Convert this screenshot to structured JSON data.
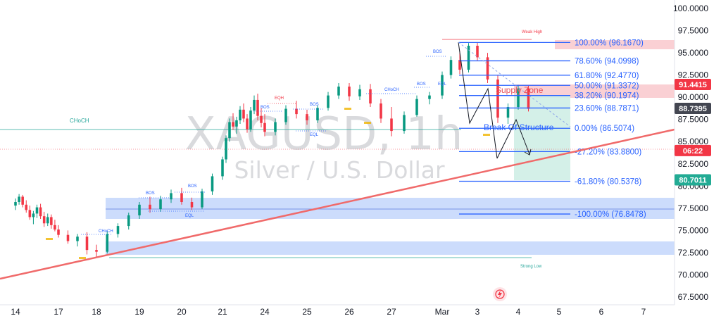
{
  "chart_data": {
    "type": "candlestick",
    "symbol": "XAGUSD",
    "interval": "1h",
    "description": "Silver / U.S. Dollar",
    "y_axis": {
      "range": [
        66.8,
        100.6
      ],
      "ticks": [
        "100.0000",
        "97.5000",
        "95.0000",
        "92.5000",
        "90.0000",
        "87.5000",
        "85.0000",
        "82.5000",
        "80.0000",
        "77.5000",
        "75.0000",
        "72.5000",
        "70.0000",
        "67.5000"
      ],
      "tick_values": [
        100,
        97.5,
        95,
        92.5,
        90,
        87.5,
        85,
        82.5,
        80,
        77.5,
        75,
        72.5,
        70,
        67.5
      ]
    },
    "x_axis": {
      "ticks": [
        "14",
        "17",
        "18",
        "19",
        "20",
        "21",
        "24",
        "25",
        "26",
        "27",
        "Mar",
        "3",
        "4",
        "5",
        "6",
        "7"
      ],
      "positions": [
        0,
        3,
        4,
        5,
        6,
        7,
        10,
        11,
        12,
        13,
        14,
        15,
        16,
        17,
        18,
        19
      ]
    },
    "price_tags": [
      {
        "value": 91.4415,
        "text": "91.4415",
        "color": "#f23645"
      },
      {
        "value": 88.7395,
        "text": "88.7395",
        "color": "#434651"
      },
      {
        "value": 84.0,
        "text": "06:22",
        "color": "#f23645"
      },
      {
        "value": 80.7011,
        "text": "80.7011",
        "color": "#22ab94"
      }
    ],
    "fib_levels": [
      {
        "value": 96.167,
        "label": "100.00% (96.1670)"
      },
      {
        "value": 94.0998,
        "label": "78.60% (94.0998)"
      },
      {
        "value": 92.477,
        "label": "61.80% (92.4770)"
      },
      {
        "value": 91.3372,
        "label": "50.00% (91.3372)"
      },
      {
        "value": 90.1974,
        "label": "38.20% (90.1974)"
      },
      {
        "value": 88.7871,
        "label": "23.60% (88.7871)"
      },
      {
        "value": 86.5074,
        "label": "0.00% (86.5074)"
      },
      {
        "value": 83.88,
        "label": "-27.20% (83.8800)"
      },
      {
        "value": 80.5378,
        "label": "-61.80% (80.5378)"
      },
      {
        "value": 76.8478,
        "label": "-100.00% (76.8478)"
      }
    ],
    "annotations": {
      "weak_high": "Weak High",
      "strong_low": "Strong Low",
      "supply_zone": "Supply Zone",
      "break_of_structure": "Break Of Structure",
      "choch_left": "CHoCH",
      "choch_small_1": "CHoCH",
      "choch_small_2": "CHoCH",
      "bos": "BOS",
      "eqh": "EQH",
      "eql": "EQL"
    },
    "candles": [
      [
        0,
        77.8,
        78.6,
        77.3,
        78.2
      ],
      [
        0.25,
        78.2,
        79.1,
        77.9,
        78.8
      ],
      [
        0.5,
        78.8,
        79.0,
        77.6,
        77.9
      ],
      [
        0.75,
        77.9,
        78.4,
        77.0,
        77.3
      ],
      [
        1,
        77.3,
        77.8,
        76.2,
        76.5
      ],
      [
        1.25,
        76.5,
        77.2,
        75.7,
        76.9
      ],
      [
        1.5,
        76.9,
        77.9,
        76.4,
        77.6
      ],
      [
        1.75,
        77.6,
        78.0,
        76.3,
        76.6
      ],
      [
        2,
        76.6,
        77.1,
        75.4,
        75.8
      ],
      [
        2.25,
        75.8,
        76.9,
        75.5,
        76.5
      ],
      [
        2.5,
        76.5,
        76.8,
        75.2,
        75.6
      ],
      [
        2.75,
        75.6,
        76.2,
        74.9,
        75.1
      ],
      [
        3,
        75.1,
        75.6,
        74.2,
        74.5
      ],
      [
        3.25,
        74.5,
        75.0,
        73.5,
        73.8
      ],
      [
        3.5,
        73.8,
        74.6,
        73.2,
        74.3
      ],
      [
        3.75,
        74.3,
        74.8,
        72.3,
        72.8
      ],
      [
        4,
        72.8,
        73.4,
        72.0,
        72.6
      ],
      [
        4.25,
        72.6,
        74.9,
        72.4,
        74.6
      ],
      [
        4.5,
        74.6,
        75.8,
        74.2,
        75.5
      ],
      [
        4.75,
        75.5,
        77.0,
        75.1,
        76.7
      ],
      [
        5,
        76.7,
        78.2,
        76.3,
        77.9
      ],
      [
        5.25,
        77.9,
        78.8,
        77.0,
        77.4
      ],
      [
        5.5,
        77.4,
        78.9,
        77.1,
        78.5
      ],
      [
        5.75,
        78.5,
        79.6,
        78.1,
        79.2
      ],
      [
        6,
        79.2,
        79.8,
        77.9,
        78.2
      ],
      [
        6.25,
        78.2,
        78.7,
        77.3,
        77.6
      ],
      [
        6.5,
        77.6,
        79.7,
        77.4,
        79.4
      ],
      [
        6.75,
        79.4,
        81.4,
        79.0,
        81.1
      ],
      [
        7,
        81.1,
        83.3,
        80.7,
        83.0
      ],
      [
        7.25,
        83.0,
        85.7,
        82.6,
        85.4
      ],
      [
        7.5,
        85.4,
        87.6,
        85.0,
        87.2
      ],
      [
        7.75,
        87.2,
        88.2,
        86.3,
        86.7
      ],
      [
        8,
        86.7,
        87.8,
        85.9,
        87.4
      ],
      [
        8.25,
        87.4,
        89.0,
        87.0,
        88.6
      ],
      [
        8.5,
        88.6,
        89.3,
        87.2,
        87.6
      ],
      [
        8.75,
        87.6,
        88.1,
        86.0,
        86.4
      ],
      [
        9,
        86.4,
        88.9,
        86.1,
        88.5
      ],
      [
        9.25,
        88.5,
        90.2,
        88.1,
        89.7
      ],
      [
        9.5,
        89.7,
        90.4,
        87.4,
        87.9
      ],
      [
        9.75,
        87.9,
        88.8,
        86.6,
        87.1
      ],
      [
        10,
        87.1,
        88.1,
        85.6,
        86.1
      ],
      [
        10.25,
        86.1,
        87.6,
        85.7,
        87.2
      ],
      [
        10.5,
        87.2,
        89.1,
        86.9,
        88.7
      ],
      [
        10.75,
        88.7,
        89.6,
        87.6,
        88.1
      ],
      [
        11,
        88.1,
        88.6,
        86.9,
        87.4
      ],
      [
        11.25,
        87.4,
        89.1,
        87.1,
        88.8
      ],
      [
        11.5,
        88.8,
        90.6,
        88.5,
        90.2
      ],
      [
        11.75,
        90.2,
        91.6,
        89.8,
        91.2
      ],
      [
        12,
        91.2,
        91.6,
        89.6,
        90.1
      ],
      [
        12.25,
        90.1,
        91.4,
        89.7,
        90.9
      ],
      [
        12.5,
        90.9,
        91.5,
        88.9,
        89.3
      ],
      [
        12.75,
        89.3,
        89.8,
        87.1,
        87.6
      ],
      [
        13,
        87.6,
        88.9,
        85.6,
        86.2
      ],
      [
        13.25,
        86.2,
        88.4,
        85.9,
        88.0
      ],
      [
        13.5,
        88.0,
        90.2,
        87.8,
        89.8
      ],
      [
        13.75,
        89.8,
        90.6,
        89.2,
        90.2
      ],
      [
        14,
        90.2,
        92.9,
        89.8,
        92.5
      ],
      [
        14.25,
        92.5,
        94.6,
        92.1,
        94.2
      ],
      [
        14.5,
        94.2,
        95.2,
        92.6,
        93.1
      ],
      [
        14.75,
        93.1,
        96.1,
        92.8,
        95.8
      ],
      [
        15,
        95.8,
        96.2,
        94.1,
        94.5
      ],
      [
        15.25,
        94.5,
        95.0,
        91.6,
        92.0
      ],
      [
        15.5,
        92.0,
        92.5,
        87.1,
        87.7
      ],
      [
        15.75,
        87.7,
        89.3,
        87.0,
        88.9
      ],
      [
        16,
        88.9,
        91.4,
        88.6,
        91.0
      ],
      [
        16.25,
        91.0,
        91.3,
        88.4,
        88.7
      ]
    ]
  }
}
